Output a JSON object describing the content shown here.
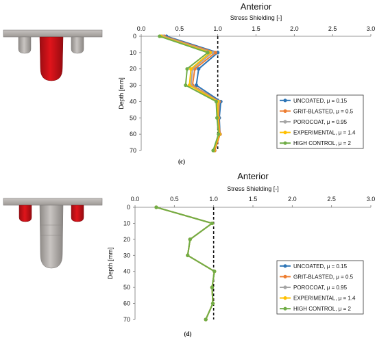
{
  "chart_data": [
    {
      "type": "line",
      "title": "Anterior",
      "xlabel": "Stress Shielding [-]",
      "ylabel": "Depth [mm]",
      "panel_label": "(c)",
      "xlim": [
        0.0,
        3.0
      ],
      "ylim": [
        0,
        70
      ],
      "x_ticks": [
        "0.0",
        "0.5",
        "1.0",
        "1.5",
        "2.0",
        "2.5",
        "3.0"
      ],
      "y_ticks": [
        "0",
        "10",
        "20",
        "30",
        "40",
        "50",
        "60",
        "70"
      ],
      "reference_line_x": 1.0,
      "legend_position": "lower-right",
      "series": [
        {
          "name": "UNCOATED, μ = 0.15",
          "color": "#2e75b6",
          "depth": [
            0,
            10,
            20,
            30,
            40,
            50,
            60,
            70
          ],
          "values": [
            0.33,
            1.0,
            0.75,
            0.72,
            1.04,
            1.02,
            1.03,
            0.96
          ]
        },
        {
          "name": "GRIT-BLASTED, μ = 0.5",
          "color": "#ed7d31",
          "depth": [
            0,
            10,
            20,
            30,
            40,
            50,
            60,
            70
          ],
          "values": [
            0.3,
            0.97,
            0.7,
            0.67,
            1.02,
            1.01,
            1.03,
            0.96
          ]
        },
        {
          "name": "POROCOAT, μ = 0.95",
          "color": "#a5a5a5",
          "depth": [
            0,
            10,
            20,
            30,
            40,
            50,
            60,
            70
          ],
          "values": [
            0.28,
            0.93,
            0.67,
            0.65,
            1.01,
            1.0,
            1.02,
            0.95
          ]
        },
        {
          "name": "EXPERIMENTAL, μ = 1.4",
          "color": "#ffc000",
          "depth": [
            0,
            10,
            20,
            30,
            40,
            50,
            60,
            70
          ],
          "values": [
            0.26,
            0.9,
            0.65,
            0.63,
            1.0,
            1.0,
            1.02,
            0.95
          ]
        },
        {
          "name": "HIGH CONTROL, μ = 2",
          "color": "#70ad47",
          "depth": [
            0,
            10,
            20,
            30,
            40,
            50,
            60,
            70
          ],
          "values": [
            0.24,
            0.87,
            0.6,
            0.58,
            0.98,
            0.99,
            1.01,
            0.94
          ]
        }
      ]
    },
    {
      "type": "line",
      "title": "Anterior",
      "xlabel": "Stress Shielding [-]",
      "ylabel": "Depth [mm]",
      "panel_label": "(d)",
      "xlim": [
        0.0,
        3.0
      ],
      "ylim": [
        0,
        70
      ],
      "x_ticks": [
        "0.0",
        "0.5",
        "1.0",
        "1.5",
        "2.0",
        "2.5",
        "3.0"
      ],
      "y_ticks": [
        "0",
        "10",
        "20",
        "30",
        "40",
        "50",
        "60",
        "70"
      ],
      "reference_line_x": 1.0,
      "legend_position": "lower-right",
      "series": [
        {
          "name": "UNCOATED, μ = 0.15",
          "color": "#2e75b6",
          "depth": [
            0,
            10,
            20,
            30,
            40,
            50,
            60,
            70
          ],
          "values": [
            0.27,
            0.98,
            0.7,
            0.67,
            1.01,
            0.98,
            0.99,
            0.9
          ]
        },
        {
          "name": "GRIT-BLASTED, μ = 0.5",
          "color": "#ed7d31",
          "depth": [
            0,
            10,
            20,
            30,
            40,
            50,
            60,
            70
          ],
          "values": [
            0.27,
            0.98,
            0.7,
            0.67,
            1.01,
            0.98,
            0.99,
            0.9
          ]
        },
        {
          "name": "POROCOAT, μ = 0.95",
          "color": "#a5a5a5",
          "depth": [
            0,
            10,
            20,
            30,
            40,
            50,
            60,
            70
          ],
          "values": [
            0.27,
            0.98,
            0.7,
            0.67,
            1.01,
            0.98,
            0.99,
            0.9
          ]
        },
        {
          "name": "EXPERIMENTAL, μ = 1.4",
          "color": "#ffc000",
          "depth": [
            0,
            10,
            20,
            30,
            40,
            50,
            60,
            70
          ],
          "values": [
            0.27,
            0.98,
            0.7,
            0.67,
            1.01,
            0.98,
            0.99,
            0.9
          ]
        },
        {
          "name": "HIGH CONTROL, μ = 2",
          "color": "#70ad47",
          "depth": [
            0,
            10,
            20,
            30,
            40,
            50,
            60,
            70
          ],
          "values": [
            0.27,
            0.98,
            0.7,
            0.67,
            1.01,
            0.98,
            0.99,
            0.9
          ]
        }
      ]
    }
  ]
}
